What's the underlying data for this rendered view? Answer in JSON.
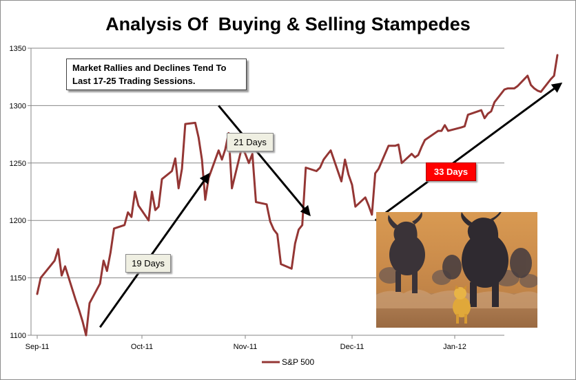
{
  "chart_data": {
    "type": "line",
    "title": "Analysis Of  Buying & Selling Stampedes",
    "x_tick_labels": [
      "Sep-11",
      "Oct-11",
      "Nov-11",
      "Dec-11",
      "Jan-12"
    ],
    "x_tick_dates": [
      "2011-09-01",
      "2011-10-01",
      "2011-11-01",
      "2011-12-01",
      "2012-01-01"
    ],
    "ylim": [
      1100,
      1350
    ],
    "y_ticks": [
      1100,
      1150,
      1200,
      1250,
      1300,
      1350
    ],
    "grid": true,
    "legend_position": "bottom",
    "series": [
      {
        "name": "S&P 500",
        "color": "#943634",
        "points": [
          [
            "2011-09-01",
            1136
          ],
          [
            "2011-09-02",
            1150
          ],
          [
            "2011-09-06",
            1165
          ],
          [
            "2011-09-07",
            1175
          ],
          [
            "2011-09-08",
            1152
          ],
          [
            "2011-09-09",
            1160
          ],
          [
            "2011-09-12",
            1131
          ],
          [
            "2011-09-13",
            1122
          ],
          [
            "2011-09-14",
            1112
          ],
          [
            "2011-09-15",
            1100
          ],
          [
            "2011-09-16",
            1128
          ],
          [
            "2011-09-19",
            1145
          ],
          [
            "2011-09-20",
            1165
          ],
          [
            "2011-09-21",
            1156
          ],
          [
            "2011-09-22",
            1172
          ],
          [
            "2011-09-23",
            1193
          ],
          [
            "2011-09-26",
            1196
          ],
          [
            "2011-09-27",
            1207
          ],
          [
            "2011-09-28",
            1203
          ],
          [
            "2011-09-29",
            1225
          ],
          [
            "2011-09-30",
            1213
          ],
          [
            "2011-10-03",
            1200
          ],
          [
            "2011-10-04",
            1225
          ],
          [
            "2011-10-05",
            1209
          ],
          [
            "2011-10-06",
            1212
          ],
          [
            "2011-10-07",
            1236
          ],
          [
            "2011-10-10",
            1243
          ],
          [
            "2011-10-11",
            1254
          ],
          [
            "2011-10-12",
            1228
          ],
          [
            "2011-10-13",
            1245
          ],
          [
            "2011-10-14",
            1284
          ],
          [
            "2011-10-17",
            1285
          ],
          [
            "2011-10-18",
            1272
          ],
          [
            "2011-10-19",
            1253
          ],
          [
            "2011-10-20",
            1218
          ],
          [
            "2011-10-21",
            1237
          ],
          [
            "2011-10-24",
            1261
          ],
          [
            "2011-10-25",
            1253
          ],
          [
            "2011-10-26",
            1262
          ],
          [
            "2011-10-27",
            1276
          ],
          [
            "2011-10-28",
            1228
          ],
          [
            "2011-10-31",
            1264
          ],
          [
            "2011-11-01",
            1258
          ],
          [
            "2011-11-02",
            1250
          ],
          [
            "2011-11-03",
            1258
          ],
          [
            "2011-11-04",
            1216
          ],
          [
            "2011-11-07",
            1214
          ],
          [
            "2011-11-08",
            1199
          ],
          [
            "2011-11-09",
            1192
          ],
          [
            "2011-11-10",
            1188
          ],
          [
            "2011-11-11",
            1162
          ],
          [
            "2011-11-14",
            1158
          ],
          [
            "2011-11-15",
            1180
          ],
          [
            "2011-11-16",
            1192
          ],
          [
            "2011-11-17",
            1196
          ],
          [
            "2011-11-18",
            1246
          ],
          [
            "2011-11-21",
            1243
          ],
          [
            "2011-11-22",
            1246
          ],
          [
            "2011-11-23",
            1253
          ],
          [
            "2011-11-24",
            1257
          ],
          [
            "2011-11-25",
            1261
          ],
          [
            "2011-11-28",
            1234
          ],
          [
            "2011-11-29",
            1253
          ],
          [
            "2011-11-30",
            1240
          ],
          [
            "2011-12-01",
            1231
          ],
          [
            "2011-12-02",
            1212
          ],
          [
            "2011-12-05",
            1220
          ],
          [
            "2011-12-06",
            1213
          ],
          [
            "2011-12-07",
            1205
          ],
          [
            "2011-12-08",
            1241
          ],
          [
            "2011-12-09",
            1245
          ],
          [
            "2011-12-12",
            1265
          ],
          [
            "2011-12-13",
            1265
          ],
          [
            "2011-12-14",
            1265
          ],
          [
            "2011-12-15",
            1266
          ],
          [
            "2011-12-16",
            1250
          ],
          [
            "2011-12-19",
            1258
          ],
          [
            "2011-12-20",
            1255
          ],
          [
            "2011-12-21",
            1257
          ],
          [
            "2011-12-22",
            1264
          ],
          [
            "2011-12-23",
            1270
          ],
          [
            "2011-12-27",
            1278
          ],
          [
            "2011-12-28",
            1278
          ],
          [
            "2011-12-29",
            1283
          ],
          [
            "2011-12-30",
            1278
          ],
          [
            "2012-01-03",
            1281
          ],
          [
            "2012-01-04",
            1282
          ],
          [
            "2012-01-05",
            1292
          ],
          [
            "2012-01-06",
            1293
          ],
          [
            "2012-01-09",
            1296
          ],
          [
            "2012-01-10",
            1289
          ],
          [
            "2012-01-11",
            1293
          ],
          [
            "2012-01-12",
            1295
          ],
          [
            "2012-01-13",
            1303
          ],
          [
            "2012-01-16",
            1314
          ],
          [
            "2012-01-17",
            1315
          ],
          [
            "2012-01-18",
            1315
          ],
          [
            "2012-01-19",
            1315
          ],
          [
            "2012-01-20",
            1317
          ],
          [
            "2012-01-23",
            1326
          ],
          [
            "2012-01-24",
            1318
          ],
          [
            "2012-01-25",
            1315
          ],
          [
            "2012-01-26",
            1313
          ],
          [
            "2012-01-27",
            1312
          ],
          [
            "2012-01-30",
            1323
          ],
          [
            "2012-01-31",
            1326
          ],
          [
            "2012-02-01",
            1344
          ]
        ]
      }
    ],
    "annotations": [
      {
        "text": "Market Rallies and Declines Tend To Last 17-25 Trading Sessions.",
        "style": "box"
      },
      {
        "text": "21 Days",
        "style": "label"
      },
      {
        "text": "19 Days",
        "style": "label"
      },
      {
        "text": "33 Days",
        "style": "highlight",
        "background": "#ff0000",
        "color": "#ffffff"
      }
    ],
    "arrows": [
      {
        "name": "rally-19-days",
        "from": [
          "2011-09-19",
          1107
        ],
        "to": [
          "2011-10-21",
          1240
        ]
      },
      {
        "name": "decline-21-days",
        "from": [
          "2011-10-24",
          1300
        ],
        "to": [
          "2011-11-19",
          1205
        ]
      },
      {
        "name": "rally-33-days",
        "from": [
          "2011-12-08",
          1200
        ],
        "to": [
          "2012-02-02",
          1319
        ]
      }
    ]
  },
  "legend": {
    "label": "S&P 500"
  },
  "image": {
    "name": "wildebeest-stampede-cartoon"
  }
}
